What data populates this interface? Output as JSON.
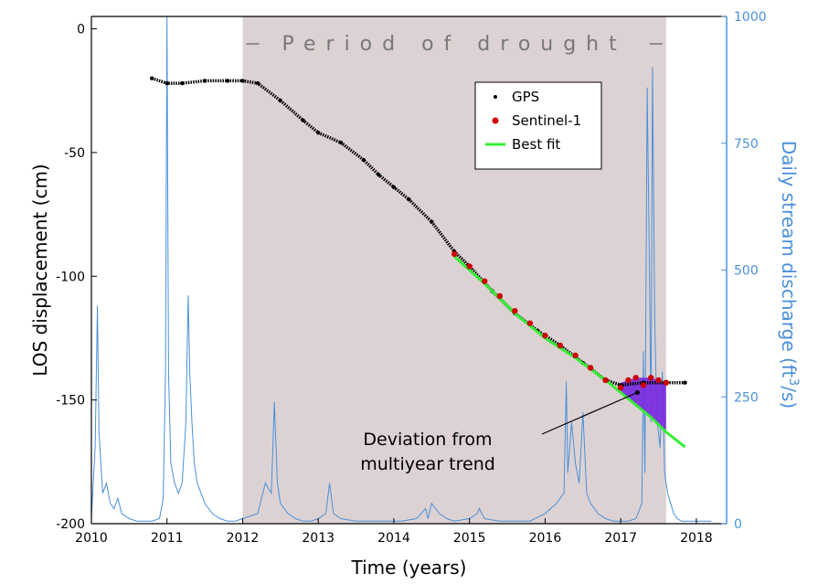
{
  "chart_data": {
    "type": "line",
    "xlabel": "Time (years)",
    "ylabel_left": "LOS displacement (cm)",
    "ylabel_right_prefix": "Daily stream discharge (ft",
    "ylabel_right_sup": "3",
    "ylabel_right_suffix": "/s)",
    "xlim": [
      2010,
      2018.4
    ],
    "ylim_left": [
      -200,
      5
    ],
    "ylim_right": [
      0,
      1000
    ],
    "x_ticks": [
      "2010",
      "2011",
      "2012",
      "2013",
      "2014",
      "2015",
      "2016",
      "2017",
      "2018"
    ],
    "y_left_ticks": [
      "0",
      "-50",
      "-100",
      "-150",
      "-200"
    ],
    "y_right_ticks": [
      "0",
      "250",
      "500",
      "750",
      "1000"
    ],
    "shaded_period": {
      "label": "Period of drought",
      "x_start": 2012.0,
      "x_end": 2017.6
    },
    "annotation": {
      "line1": "Deviation from",
      "line2": "multiyear trend"
    },
    "legend": {
      "position": "upper-right-inside",
      "entries": [
        {
          "label": "GPS",
          "color": "#000000",
          "marker": "dot"
        },
        {
          "label": "Sentinel-1",
          "color": "#cc0000",
          "marker": "dot"
        },
        {
          "label": "Best fit",
          "color": "#33ee33",
          "marker": "line"
        }
      ]
    },
    "series": [
      {
        "name": "GPS",
        "axis": "left",
        "color": "#000000",
        "x": [
          2010.8,
          2011.0,
          2011.2,
          2011.5,
          2011.8,
          2012.0,
          2012.2,
          2012.5,
          2012.8,
          2013.0,
          2013.3,
          2013.6,
          2013.8,
          2014.0,
          2014.2,
          2014.5,
          2014.8,
          2015.0,
          2015.3,
          2015.6,
          2015.9,
          2016.2,
          2016.5,
          2016.8,
          2017.0,
          2017.3,
          2017.6,
          2017.85
        ],
        "y": [
          -20,
          -22,
          -22,
          -21,
          -21,
          -21,
          -22,
          -29,
          -37,
          -42,
          -46,
          -53,
          -59,
          -64,
          -69,
          -78,
          -90,
          -96,
          -106,
          -115,
          -122,
          -128,
          -135,
          -142,
          -144,
          -143,
          -143,
          -143
        ]
      },
      {
        "name": "Sentinel-1",
        "axis": "left",
        "color": "#cc0000",
        "x": [
          2014.8,
          2015.0,
          2015.2,
          2015.4,
          2015.6,
          2015.8,
          2016.0,
          2016.2,
          2016.4,
          2016.6,
          2016.8,
          2017.0,
          2017.1,
          2017.2,
          2017.3,
          2017.4,
          2017.5,
          2017.6
        ],
        "y": [
          -91,
          -96,
          -102,
          -108,
          -114,
          -119,
          -124,
          -128,
          -132,
          -137,
          -142,
          -145,
          -142,
          -141,
          -144,
          -141,
          -142,
          -143
        ]
      },
      {
        "name": "Best fit",
        "axis": "left",
        "color": "#33ee33",
        "x": [
          2014.8,
          2015.2,
          2015.6,
          2016.0,
          2016.4,
          2016.8,
          2017.0,
          2017.2,
          2017.4,
          2017.6,
          2017.85
        ],
        "y": [
          -92,
          -103,
          -115,
          -125,
          -133,
          -142,
          -147,
          -152,
          -157,
          -163,
          -169
        ]
      },
      {
        "name": "Daily stream discharge",
        "axis": "right",
        "color": "#4a90d9",
        "x": [
          2010.0,
          2010.05,
          2010.08,
          2010.1,
          2010.15,
          2010.2,
          2010.25,
          2010.3,
          2010.35,
          2010.4,
          2010.5,
          2010.6,
          2010.7,
          2010.8,
          2010.9,
          2010.95,
          2010.98,
          2011.0,
          2011.02,
          2011.05,
          2011.1,
          2011.15,
          2011.2,
          2011.25,
          2011.28,
          2011.3,
          2011.33,
          2011.36,
          2011.4,
          2011.45,
          2011.5,
          2011.6,
          2011.7,
          2011.8,
          2011.9,
          2012.0,
          2012.2,
          2012.3,
          2012.38,
          2012.42,
          2012.46,
          2012.5,
          2012.6,
          2012.7,
          2012.8,
          2012.9,
          2013.0,
          2013.1,
          2013.15,
          2013.2,
          2013.3,
          2013.5,
          2013.7,
          2013.9,
          2014.1,
          2014.3,
          2014.42,
          2014.45,
          2014.5,
          2014.6,
          2014.7,
          2014.8,
          2015.0,
          2015.1,
          2015.13,
          2015.2,
          2015.4,
          2015.6,
          2015.8,
          2016.0,
          2016.15,
          2016.25,
          2016.28,
          2016.3,
          2016.35,
          2016.4,
          2016.45,
          2016.5,
          2016.55,
          2016.6,
          2016.7,
          2016.8,
          2016.9,
          2017.0,
          2017.1,
          2017.2,
          2017.28,
          2017.3,
          2017.32,
          2017.35,
          2017.38,
          2017.4,
          2017.42,
          2017.45,
          2017.48,
          2017.5,
          2017.52,
          2017.55,
          2017.58,
          2017.62,
          2017.66,
          2017.7,
          2017.75,
          2017.8,
          2017.9,
          2018.0,
          2018.2
        ],
        "y": [
          10,
          150,
          430,
          180,
          60,
          80,
          40,
          30,
          50,
          20,
          10,
          5,
          5,
          5,
          10,
          50,
          300,
          1000,
          300,
          120,
          80,
          60,
          80,
          200,
          450,
          300,
          200,
          120,
          80,
          60,
          40,
          20,
          10,
          5,
          5,
          10,
          20,
          80,
          60,
          240,
          80,
          40,
          20,
          10,
          5,
          5,
          10,
          20,
          80,
          20,
          10,
          5,
          5,
          5,
          5,
          10,
          30,
          10,
          40,
          20,
          10,
          5,
          10,
          20,
          30,
          10,
          5,
          5,
          5,
          20,
          40,
          60,
          280,
          100,
          200,
          120,
          80,
          220,
          60,
          40,
          20,
          10,
          5,
          5,
          5,
          10,
          40,
          340,
          100,
          860,
          500,
          200,
          900,
          400,
          200,
          180,
          150,
          300,
          100,
          60,
          40,
          20,
          10,
          5,
          5,
          5,
          5
        ]
      }
    ]
  }
}
